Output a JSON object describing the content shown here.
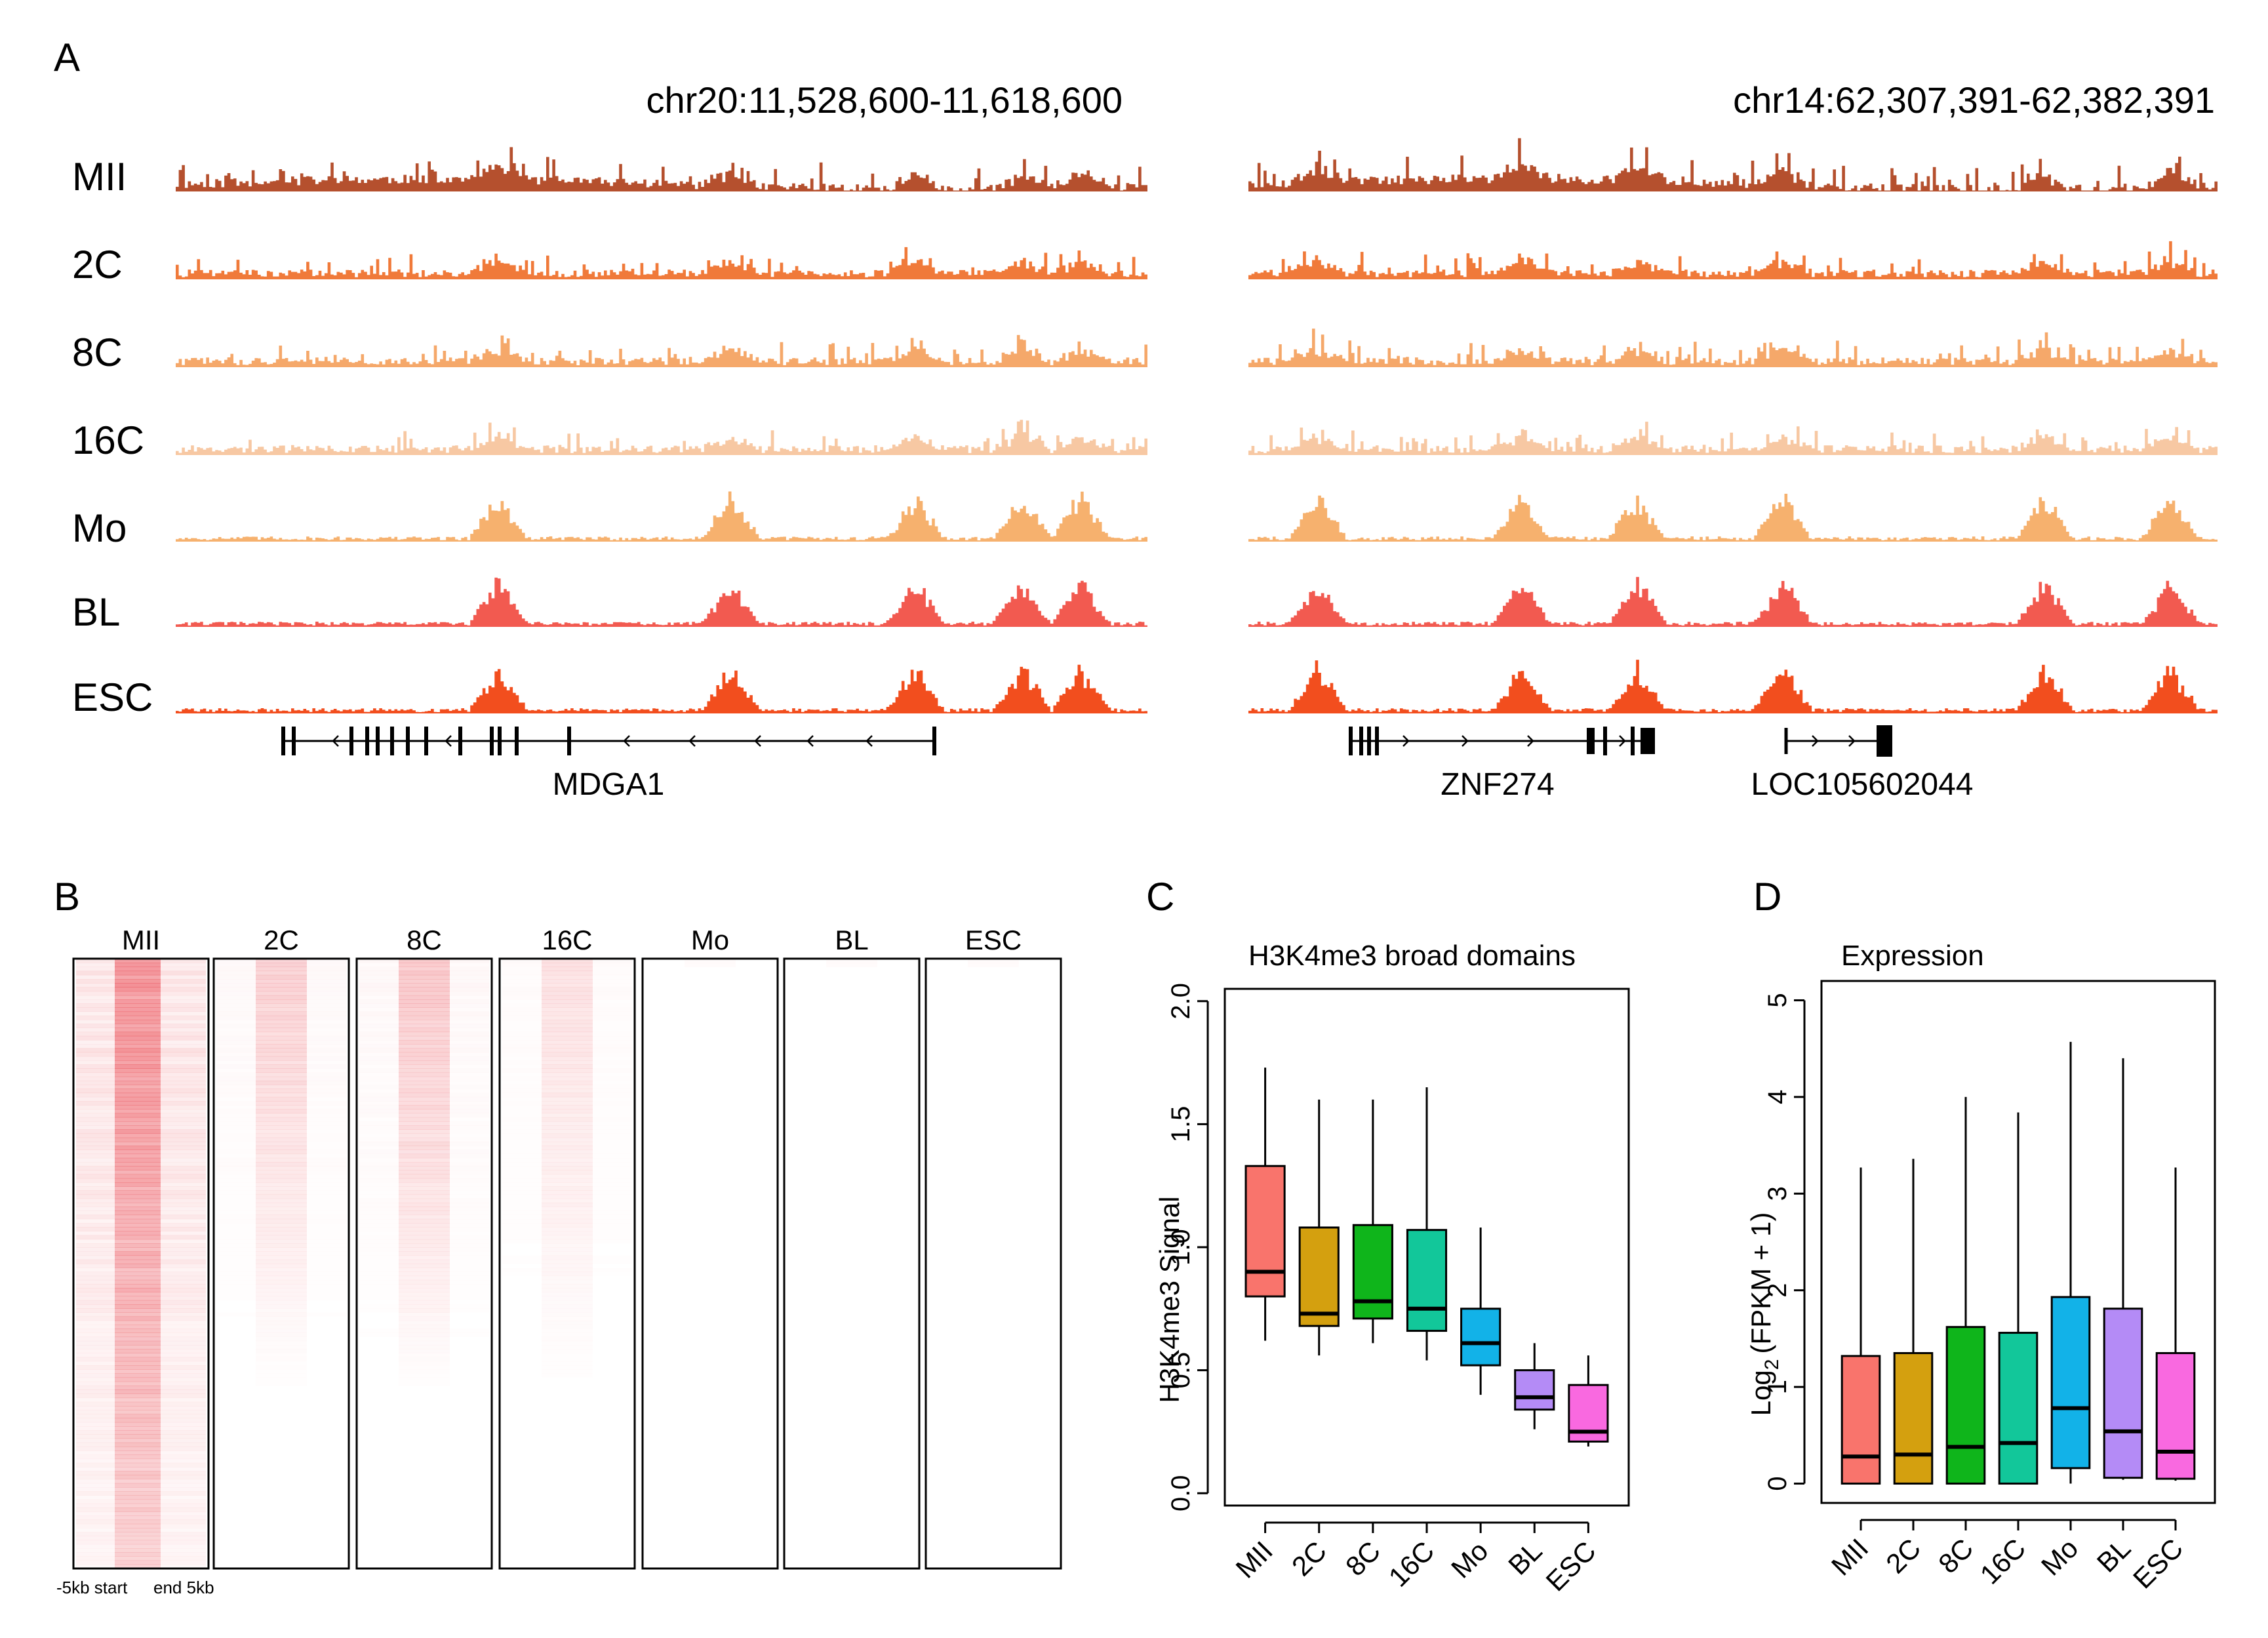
{
  "panel_a": {
    "letter": "A",
    "left": {
      "region": "chr20:11,528,600-11,618,600",
      "genes": [
        "MDGA1"
      ],
      "peaks": [
        0.33,
        0.57,
        0.76,
        0.87,
        0.93
      ]
    },
    "right": {
      "region": "chr14:62,307,391-62,382,391",
      "genes": [
        "ZNF274",
        "LOC105602044"
      ],
      "peaks": [
        0.07,
        0.28,
        0.4,
        0.55,
        0.82,
        0.95
      ]
    },
    "tracks": [
      {
        "label": "MII",
        "color": "#b5502e"
      },
      {
        "label": "2C",
        "color": "#f07a3a"
      },
      {
        "label": "8C",
        "color": "#f5a86a"
      },
      {
        "label": "16C",
        "color": "#f7c8a3"
      },
      {
        "label": "Mo",
        "color": "#f6b16e"
      },
      {
        "label": "BL",
        "color": "#f25a50"
      },
      {
        "label": "ESC",
        "color": "#f24e1e"
      }
    ]
  },
  "panel_b": {
    "letter": "B",
    "columns": [
      {
        "label": "MII",
        "intensity": 1.0
      },
      {
        "label": "2C",
        "intensity": 0.45
      },
      {
        "label": "8C",
        "intensity": 0.55
      },
      {
        "label": "16C",
        "intensity": 0.3
      },
      {
        "label": "Mo",
        "intensity": 0.05
      },
      {
        "label": "BL",
        "intensity": 0.05
      },
      {
        "label": "ESC",
        "intensity": 0.05
      }
    ],
    "axis_left": "-5kb start",
    "axis_right": "end 5kb",
    "heat_color": "#e8323c"
  },
  "panel_c": {
    "letter": "C",
    "chart_data": {
      "type": "box",
      "title": "H3K4me3 broad domains",
      "ylabel": "H3K4me3 Signal",
      "ylim": [
        -0.05,
        2.05
      ],
      "yticks": [
        "0.0",
        "0.5",
        "1.0",
        "1.5",
        "2.0"
      ],
      "categories": [
        "MII",
        "2C",
        "8C",
        "16C",
        "Mo",
        "BL",
        "ESC"
      ],
      "colors": [
        "#f9746c",
        "#d4a00f",
        "#0fb51b",
        "#12c79a",
        "#12b2e8",
        "#b48bf6",
        "#f969e0"
      ],
      "boxes": [
        {
          "whisker_low": 0.62,
          "q1": 0.8,
          "median": 0.9,
          "q3": 1.33,
          "whisker_high": 1.73
        },
        {
          "whisker_low": 0.56,
          "q1": 0.68,
          "median": 0.73,
          "q3": 1.08,
          "whisker_high": 1.6
        },
        {
          "whisker_low": 0.61,
          "q1": 0.71,
          "median": 0.78,
          "q3": 1.09,
          "whisker_high": 1.6
        },
        {
          "whisker_low": 0.54,
          "q1": 0.66,
          "median": 0.75,
          "q3": 1.07,
          "whisker_high": 1.65
        },
        {
          "whisker_low": 0.4,
          "q1": 0.52,
          "median": 0.61,
          "q3": 0.75,
          "whisker_high": 1.08
        },
        {
          "whisker_low": 0.26,
          "q1": 0.34,
          "median": 0.39,
          "q3": 0.5,
          "whisker_high": 0.61
        },
        {
          "whisker_low": 0.19,
          "q1": 0.21,
          "median": 0.25,
          "q3": 0.44,
          "whisker_high": 0.56
        }
      ]
    }
  },
  "panel_d": {
    "letter": "D",
    "chart_data": {
      "type": "box",
      "title": "Expression",
      "ylabel_main": "Log",
      "ylabel_sub": "2",
      "ylabel_tail": "(FPKM + 1)",
      "ylim": [
        -0.2,
        5.2
      ],
      "yticks": [
        "0",
        "1",
        "2",
        "3",
        "4",
        "5"
      ],
      "categories": [
        "MII",
        "2C",
        "8C",
        "16C",
        "Mo",
        "BL",
        "ESC"
      ],
      "colors": [
        "#f9746c",
        "#d4a00f",
        "#0fb51b",
        "#12c79a",
        "#12b2e8",
        "#b48bf6",
        "#f969e0"
      ],
      "boxes": [
        {
          "whisker_low": 0.0,
          "q1": 0.0,
          "median": 0.28,
          "q3": 1.32,
          "whisker_high": 3.27
        },
        {
          "whisker_low": 0.0,
          "q1": 0.0,
          "median": 0.3,
          "q3": 1.35,
          "whisker_high": 3.36
        },
        {
          "whisker_low": 0.0,
          "q1": 0.0,
          "median": 0.38,
          "q3": 1.62,
          "whisker_high": 4.0
        },
        {
          "whisker_low": 0.0,
          "q1": 0.0,
          "median": 0.42,
          "q3": 1.56,
          "whisker_high": 3.84
        },
        {
          "whisker_low": 0.0,
          "q1": 0.16,
          "median": 0.78,
          "q3": 1.93,
          "whisker_high": 4.57
        },
        {
          "whisker_low": 0.04,
          "q1": 0.06,
          "median": 0.54,
          "q3": 1.81,
          "whisker_high": 4.4
        },
        {
          "whisker_low": 0.03,
          "q1": 0.05,
          "median": 0.33,
          "q3": 1.35,
          "whisker_high": 3.27
        }
      ]
    }
  }
}
